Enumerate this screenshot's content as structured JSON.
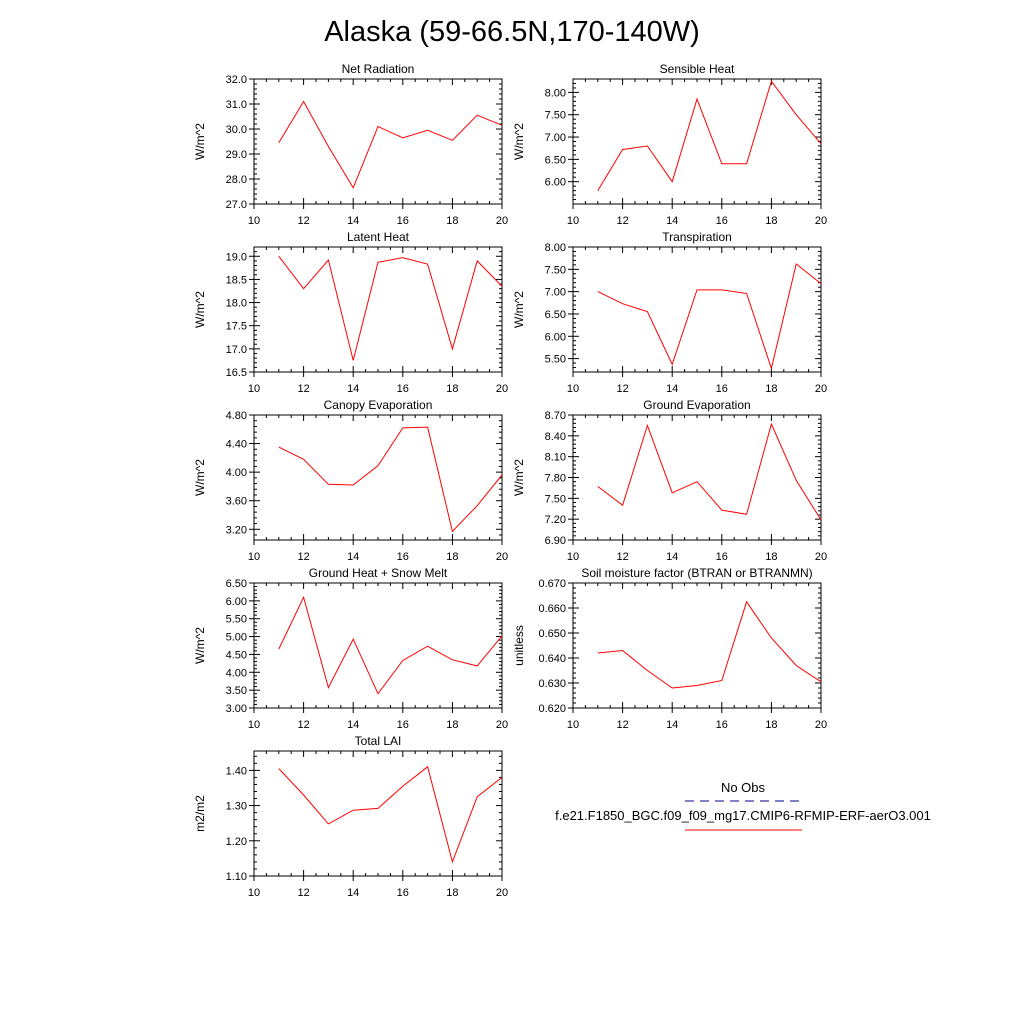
{
  "figure_title": "Alaska (59-66.5N,170-140W)",
  "colors": {
    "model_line": "#ff0000",
    "obs_line": "#00008b",
    "axes": "#000000"
  },
  "legend": {
    "obs_label": "No Obs",
    "model_label": "f.e21.F1850_BGC.f09_f09_mg17.CMIP6-RFMIP-ERF-aerO3.001"
  },
  "chart_data": [
    {
      "type": "line",
      "title": "Net Radiation",
      "ylabel": "W/m^2",
      "xlim": [
        10,
        20
      ],
      "ylim": [
        27.0,
        32.0
      ],
      "xticks": [
        10,
        12,
        14,
        16,
        18,
        20
      ],
      "yticks": [
        "27.0",
        "28.0",
        "29.0",
        "30.0",
        "31.0",
        "32.0"
      ],
      "x": [
        11,
        12,
        13,
        14,
        15,
        16,
        17,
        18,
        19,
        20
      ],
      "series": [
        {
          "values": [
            29.45,
            31.1,
            29.3,
            27.65,
            30.1,
            29.65,
            29.95,
            29.55,
            30.55,
            30.15
          ]
        }
      ]
    },
    {
      "type": "line",
      "title": "Sensible Heat",
      "ylabel": "W/m^2",
      "xlim": [
        10,
        20
      ],
      "ylim": [
        5.5,
        8.3
      ],
      "xticks": [
        10,
        12,
        14,
        16,
        18,
        20
      ],
      "yticks": [
        "6.00",
        "6.50",
        "7.00",
        "7.50",
        "8.00"
      ],
      "x": [
        11,
        12,
        13,
        14,
        15,
        16,
        17,
        18,
        19,
        20
      ],
      "series": [
        {
          "values": [
            5.8,
            6.72,
            6.8,
            6.0,
            7.85,
            6.4,
            6.4,
            8.25,
            7.5,
            6.85
          ]
        }
      ]
    },
    {
      "type": "line",
      "title": "Latent Heat",
      "ylabel": "W/m^2",
      "xlim": [
        10,
        20
      ],
      "ylim": [
        16.5,
        19.2
      ],
      "xticks": [
        10,
        12,
        14,
        16,
        18,
        20
      ],
      "yticks": [
        "16.5",
        "17.0",
        "17.5",
        "18.0",
        "18.5",
        "19.0"
      ],
      "x": [
        11,
        12,
        13,
        14,
        15,
        16,
        17,
        18,
        19,
        20
      ],
      "series": [
        {
          "values": [
            19.0,
            18.3,
            18.92,
            16.75,
            18.87,
            18.97,
            18.83,
            17.0,
            18.9,
            18.35
          ]
        }
      ]
    },
    {
      "type": "line",
      "title": "Transpiration",
      "ylabel": "W/m^2",
      "xlim": [
        10,
        20
      ],
      "ylim": [
        5.2,
        8.0
      ],
      "xticks": [
        10,
        12,
        14,
        16,
        18,
        20
      ],
      "yticks": [
        "5.50",
        "6.00",
        "6.50",
        "7.00",
        "7.50",
        "8.00"
      ],
      "x": [
        11,
        12,
        13,
        14,
        15,
        16,
        17,
        18,
        19,
        20
      ],
      "series": [
        {
          "values": [
            7.0,
            6.73,
            6.55,
            5.37,
            7.04,
            7.04,
            6.96,
            5.28,
            7.62,
            7.18
          ]
        }
      ]
    },
    {
      "type": "line",
      "title": "Canopy Evaporation",
      "ylabel": "W/m^2",
      "xlim": [
        10,
        20
      ],
      "ylim": [
        3.05,
        4.8
      ],
      "xticks": [
        10,
        12,
        14,
        16,
        18,
        20
      ],
      "yticks": [
        "3.20",
        "3.60",
        "4.00",
        "4.40",
        "4.80"
      ],
      "x": [
        11,
        12,
        13,
        14,
        15,
        16,
        17,
        18,
        19,
        20
      ],
      "series": [
        {
          "values": [
            4.35,
            4.18,
            3.83,
            3.82,
            4.09,
            4.62,
            4.63,
            3.17,
            3.53,
            3.96
          ]
        }
      ]
    },
    {
      "type": "line",
      "title": "Ground Evaporation",
      "ylabel": "W/m^2",
      "xlim": [
        10,
        20
      ],
      "ylim": [
        6.9,
        8.7
      ],
      "xticks": [
        10,
        12,
        14,
        16,
        18,
        20
      ],
      "yticks": [
        "6.90",
        "7.20",
        "7.50",
        "7.80",
        "8.10",
        "8.40",
        "8.70"
      ],
      "x": [
        11,
        12,
        13,
        14,
        15,
        16,
        17,
        18,
        19,
        20
      ],
      "series": [
        {
          "values": [
            7.67,
            7.4,
            8.55,
            7.58,
            7.74,
            7.33,
            7.27,
            8.57,
            7.76,
            7.19
          ]
        }
      ]
    },
    {
      "type": "line",
      "title": "Ground Heat + Snow Melt",
      "ylabel": "W/m^2",
      "xlim": [
        10,
        20
      ],
      "ylim": [
        3.0,
        6.5
      ],
      "xticks": [
        10,
        12,
        14,
        16,
        18,
        20
      ],
      "yticks": [
        "3.00",
        "3.50",
        "4.00",
        "4.50",
        "5.00",
        "5.50",
        "6.00",
        "6.50"
      ],
      "x": [
        11,
        12,
        13,
        14,
        15,
        16,
        17,
        18,
        19,
        20
      ],
      "series": [
        {
          "values": [
            4.65,
            6.1,
            3.57,
            4.93,
            3.4,
            4.33,
            4.73,
            4.35,
            4.18,
            5.02
          ]
        }
      ]
    },
    {
      "type": "line",
      "title": "Soil moisture factor (BTRAN or BTRANMN)",
      "ylabel": "unitless",
      "xlim": [
        10,
        20
      ],
      "ylim": [
        0.62,
        0.67
      ],
      "xticks": [
        10,
        12,
        14,
        16,
        18,
        20
      ],
      "yticks": [
        "0.620",
        "0.630",
        "0.640",
        "0.650",
        "0.660",
        "0.670"
      ],
      "x": [
        11,
        12,
        13,
        14,
        15,
        16,
        17,
        18,
        19,
        20
      ],
      "series": [
        {
          "values": [
            0.642,
            0.643,
            0.635,
            0.628,
            0.629,
            0.631,
            0.6625,
            0.648,
            0.637,
            0.6305
          ]
        }
      ]
    },
    {
      "type": "line",
      "title": "Total LAI",
      "ylabel": "m2/m2",
      "xlim": [
        10,
        20
      ],
      "ylim": [
        1.1,
        1.455
      ],
      "xticks": [
        10,
        12,
        14,
        16,
        18,
        20
      ],
      "yticks": [
        "1.10",
        "1.20",
        "1.30",
        "1.40"
      ],
      "x": [
        11,
        12,
        13,
        14,
        15,
        16,
        17,
        18,
        19,
        20
      ],
      "series": [
        {
          "values": [
            1.405,
            1.33,
            1.248,
            1.287,
            1.292,
            1.355,
            1.41,
            1.14,
            1.325,
            1.38
          ]
        }
      ]
    }
  ]
}
